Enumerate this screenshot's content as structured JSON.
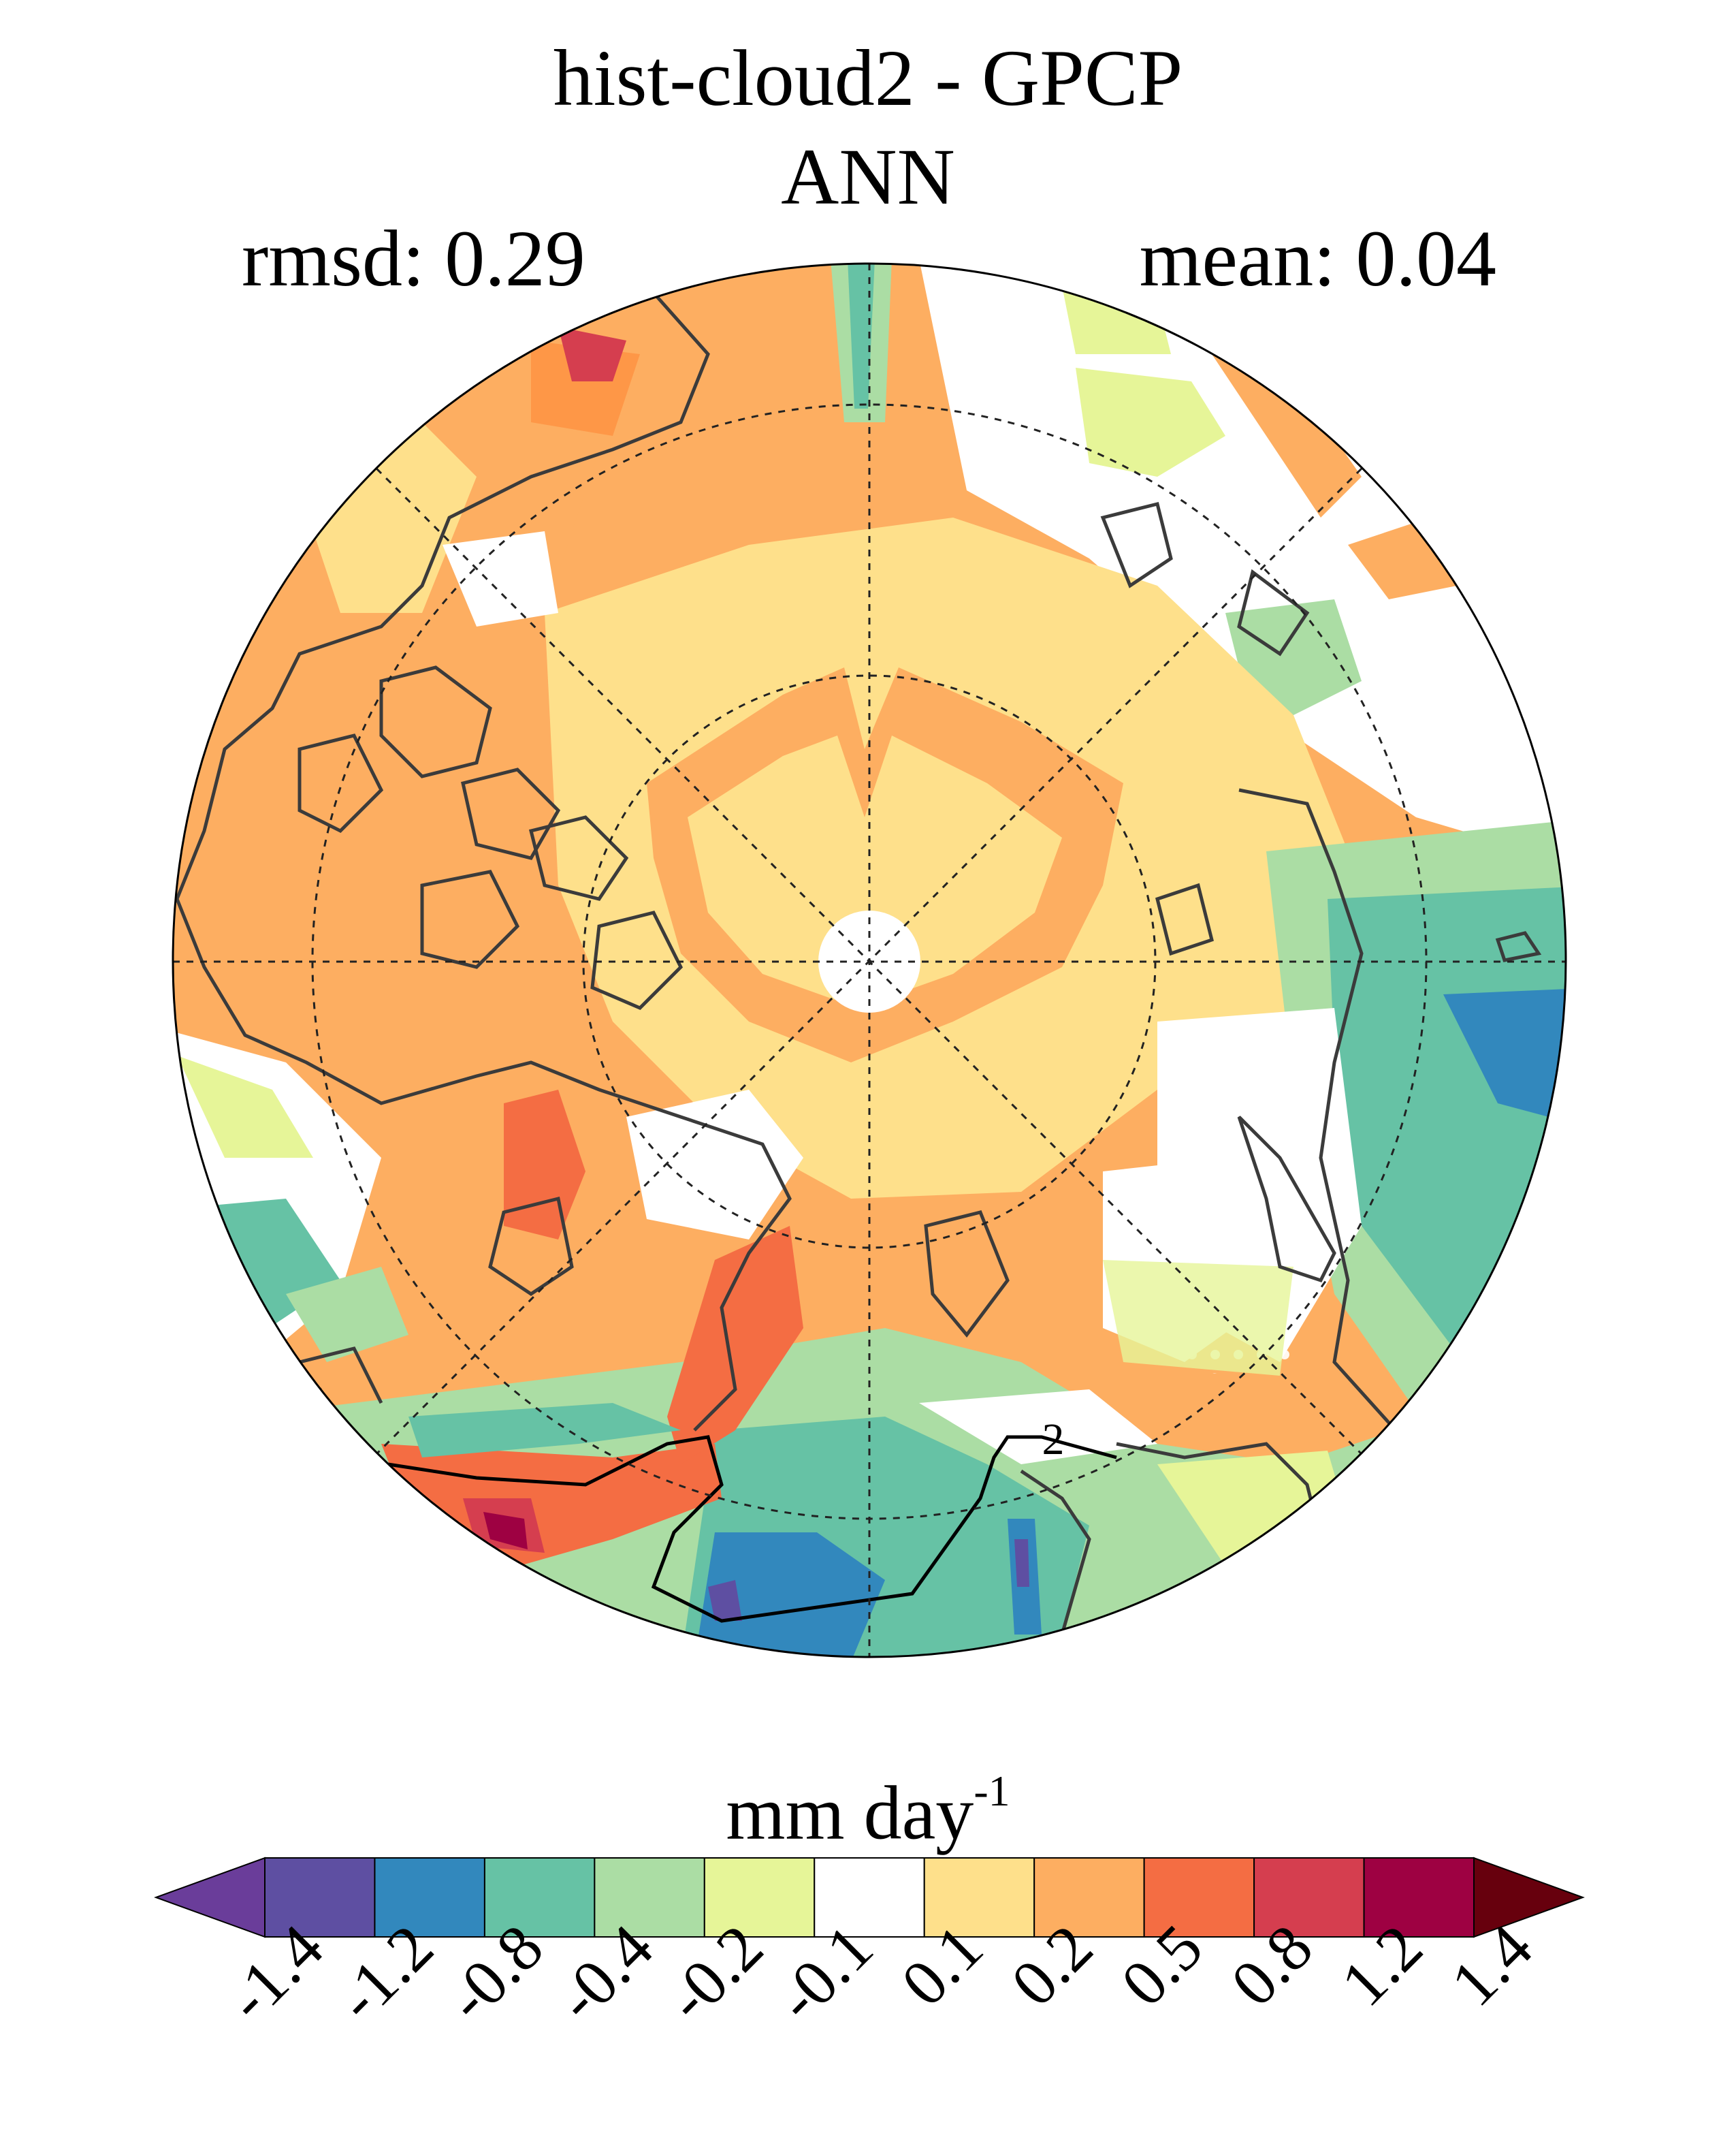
{
  "figure": {
    "title": "hist-cloud2 - GPCP",
    "season": "ANN",
    "rmsd_label": "rmsd: 0.29",
    "mean_label": "mean: 0.04",
    "contour_label": "2"
  },
  "colorbar": {
    "units_main": "mm day",
    "units_exp": "-1",
    "levels": [
      "-1.4",
      "-1.2",
      "-0.8",
      "-0.4",
      "-0.2",
      "-0.1",
      "0.1",
      "0.2",
      "0.5",
      "0.8",
      "1.2",
      "1.4"
    ],
    "colors": [
      "#5e4fa2",
      "#3288bd",
      "#66c2a5",
      "#abdda4",
      "#e6f598",
      "#ffffff",
      "#fee08b",
      "#fdae61",
      "#f46d43",
      "#d53e4f",
      "#9e0142"
    ],
    "under_color": "#6a3d9a",
    "over_color": "#67000d"
  }
}
